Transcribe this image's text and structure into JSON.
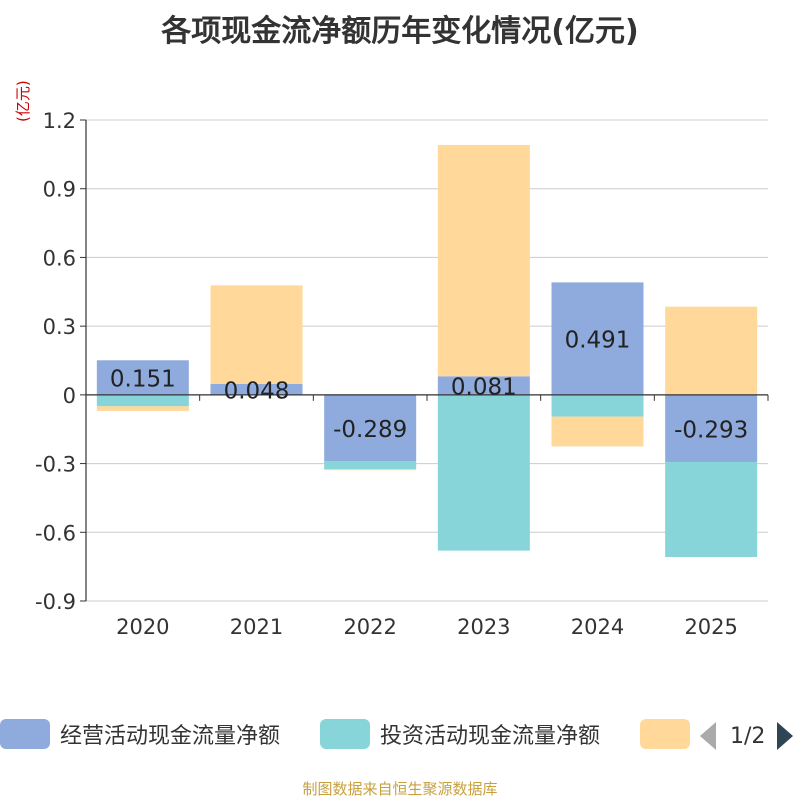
{
  "title": "各项现金流净额历年变化情况(亿元)",
  "unit_label": "(亿元)",
  "source": "制图数据来自恒生聚源数据库",
  "pager": {
    "text": "1/2"
  },
  "chart_data": {
    "type": "bar",
    "stacked": true,
    "title": "各项现金流净额历年变化情况(亿元)",
    "ylabel": "(亿元)",
    "ylim": [
      -0.9,
      1.2
    ],
    "yticks": [
      1.2,
      0.9,
      0.6,
      0.3,
      0,
      -0.3,
      -0.6,
      -0.9
    ],
    "ytick_labels": [
      "1.2",
      "0.9",
      "0.6",
      "0.3",
      "0",
      "-0.3",
      "-0.6",
      "-0.9"
    ],
    "categories": [
      "2020",
      "2021",
      "2022",
      "2023",
      "2024",
      "2025"
    ],
    "series": [
      {
        "name": "经营活动现金流量净额",
        "color": "#8faadc",
        "values": [
          0.151,
          0.048,
          -0.289,
          0.081,
          0.491,
          -0.293
        ],
        "labels": [
          "0.151",
          "0.048",
          "-0.289",
          "0.081",
          "0.491",
          "-0.293"
        ]
      },
      {
        "name": "投资活动现金流量净额",
        "color": "#87d5d8",
        "values": [
          -0.05,
          0.0,
          -0.035,
          -0.68,
          -0.095,
          -0.415
        ]
      },
      {
        "name": "",
        "color": "#ffd89a",
        "values": [
          -0.02,
          0.43,
          -0.005,
          1.01,
          -0.13,
          0.385
        ]
      }
    ],
    "legend_position": "bottom"
  }
}
